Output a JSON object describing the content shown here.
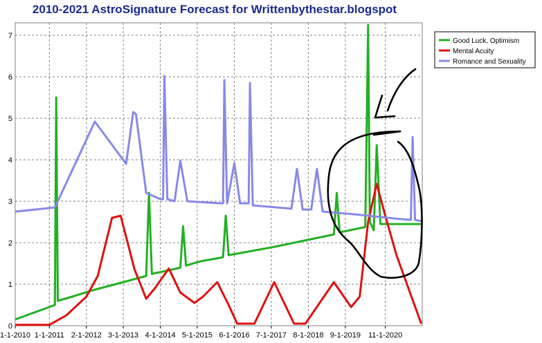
{
  "chart_data": {
    "type": "line",
    "title": "2010-2021 AstroSignature Forecast for Writtenbythestar.blogspot",
    "xlabel": "",
    "ylabel": "",
    "xlim": [
      "2010-01-01",
      "2021-12-01"
    ],
    "ylim": [
      0,
      7.3
    ],
    "yticks": [
      0,
      1,
      2,
      3,
      4,
      5,
      6,
      7
    ],
    "xticks": [
      {
        "date": "2010-01-01",
        "label": "1-1-2010"
      },
      {
        "date": "2011-01-01",
        "label": "1-1-2011"
      },
      {
        "date": "2012-02-01",
        "label": "2-1-2012"
      },
      {
        "date": "2013-03-01",
        "label": "3-1-2013"
      },
      {
        "date": "2014-04-01",
        "label": "4-1-2014"
      },
      {
        "date": "2015-05-01",
        "label": "5-1-2015"
      },
      {
        "date": "2016-06-01",
        "label": "6-1-2016"
      },
      {
        "date": "2017-07-01",
        "label": "7-1-2017"
      },
      {
        "date": "2018-08-01",
        "label": "8-1-2018"
      },
      {
        "date": "2019-09-01",
        "label": "9-1-2019"
      },
      {
        "date": "2020-11-01",
        "label": "11-1-2020"
      }
    ],
    "grid": true,
    "grid_style": "dashed",
    "legend_position": "top-right",
    "series": [
      {
        "name": "Good Luck, Optimism",
        "color": "#22b022",
        "points": [
          [
            "2010-01-01",
            0.15
          ],
          [
            "2010-07-01",
            0.3
          ],
          [
            "2011-03-01",
            0.5
          ],
          [
            "2011-03-15",
            5.5
          ],
          [
            "2011-04-01",
            0.6
          ],
          [
            "2011-09-01",
            0.7
          ],
          [
            "2012-04-01",
            0.85
          ],
          [
            "2013-03-01",
            1.05
          ],
          [
            "2013-11-01",
            1.2
          ],
          [
            "2013-12-01",
            3.2
          ],
          [
            "2014-01-01",
            1.25
          ],
          [
            "2014-08-01",
            1.35
          ],
          [
            "2014-11-01",
            1.4
          ],
          [
            "2014-12-01",
            2.4
          ],
          [
            "2015-01-01",
            1.45
          ],
          [
            "2015-06-01",
            1.55
          ],
          [
            "2016-02-01",
            1.65
          ],
          [
            "2016-03-01",
            2.65
          ],
          [
            "2016-04-01",
            1.7
          ],
          [
            "2016-12-01",
            1.8
          ],
          [
            "2017-08-01",
            1.9
          ],
          [
            "2018-03-01",
            2.0
          ],
          [
            "2018-10-01",
            2.1
          ],
          [
            "2019-05-01",
            2.2
          ],
          [
            "2019-06-01",
            3.2
          ],
          [
            "2019-07-01",
            2.25
          ],
          [
            "2020-02-01",
            2.35
          ],
          [
            "2020-04-01",
            2.38
          ],
          [
            "2020-05-01",
            7.25
          ],
          [
            "2020-05-20",
            2.5
          ],
          [
            "2020-07-01",
            2.3
          ],
          [
            "2020-08-01",
            4.35
          ],
          [
            "2020-09-10",
            2.45
          ],
          [
            "2021-04-01",
            2.45
          ],
          [
            "2021-11-20",
            2.45
          ]
        ]
      },
      {
        "name": "Mental Acuity",
        "color": "#e01010",
        "points": [
          [
            "2010-01-01",
            0.02
          ],
          [
            "2010-09-01",
            0.02
          ],
          [
            "2011-01-01",
            0.02
          ],
          [
            "2011-07-01",
            0.25
          ],
          [
            "2012-02-01",
            0.7
          ],
          [
            "2012-06-01",
            1.2
          ],
          [
            "2012-11-01",
            2.6
          ],
          [
            "2013-02-01",
            2.65
          ],
          [
            "2013-07-01",
            1.35
          ],
          [
            "2013-11-01",
            0.65
          ],
          [
            "2014-02-01",
            0.9
          ],
          [
            "2014-07-01",
            1.38
          ],
          [
            "2014-11-01",
            0.8
          ],
          [
            "2015-04-01",
            0.55
          ],
          [
            "2015-07-01",
            0.7
          ],
          [
            "2015-12-01",
            1.05
          ],
          [
            "2016-04-01",
            0.5
          ],
          [
            "2016-07-01",
            0.05
          ],
          [
            "2017-01-01",
            0.05
          ],
          [
            "2017-08-01",
            1.05
          ],
          [
            "2018-03-01",
            0.05
          ],
          [
            "2018-07-01",
            0.05
          ],
          [
            "2019-05-01",
            1.05
          ],
          [
            "2019-11-01",
            0.45
          ],
          [
            "2020-02-01",
            0.7
          ],
          [
            "2020-05-01",
            2.5
          ],
          [
            "2020-08-01",
            3.42
          ],
          [
            "2020-11-01",
            2.65
          ],
          [
            "2021-03-01",
            1.7
          ],
          [
            "2021-11-20",
            0.05
          ]
        ]
      },
      {
        "name": "Romance and Sexuality",
        "color": "#8888e8",
        "points": [
          [
            "2010-01-01",
            2.75
          ],
          [
            "2011-03-01",
            2.85
          ],
          [
            "2012-05-01",
            4.92
          ],
          [
            "2013-04-01",
            3.9
          ],
          [
            "2013-06-15",
            5.15
          ],
          [
            "2013-07-15",
            5.1
          ],
          [
            "2013-11-01",
            3.2
          ],
          [
            "2014-04-01",
            3.05
          ],
          [
            "2014-05-01",
            3.05
          ],
          [
            "2014-05-15",
            6.02
          ],
          [
            "2014-06-15",
            3.05
          ],
          [
            "2014-09-01",
            3.0
          ],
          [
            "2014-11-01",
            3.98
          ],
          [
            "2015-01-15",
            3.0
          ],
          [
            "2016-01-01",
            2.95
          ],
          [
            "2016-02-01",
            2.95
          ],
          [
            "2016-02-15",
            5.92
          ],
          [
            "2016-03-15",
            2.95
          ],
          [
            "2016-06-01",
            3.92
          ],
          [
            "2016-08-01",
            2.95
          ],
          [
            "2016-11-01",
            2.95
          ],
          [
            "2016-11-15",
            5.85
          ],
          [
            "2016-12-15",
            2.9
          ],
          [
            "2018-02-01",
            2.82
          ],
          [
            "2018-04-01",
            3.78
          ],
          [
            "2018-06-01",
            2.8
          ],
          [
            "2018-09-01",
            2.8
          ],
          [
            "2018-11-01",
            3.78
          ],
          [
            "2019-01-01",
            2.75
          ],
          [
            "2020-01-01",
            2.68
          ],
          [
            "2021-03-01",
            2.58
          ],
          [
            "2021-08-01",
            2.55
          ],
          [
            "2021-08-20",
            4.55
          ],
          [
            "2021-09-15",
            2.55
          ],
          [
            "2021-11-20",
            2.52
          ]
        ]
      }
    ]
  }
}
